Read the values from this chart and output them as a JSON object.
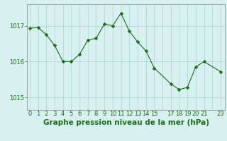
{
  "x": [
    0,
    1,
    2,
    3,
    4,
    5,
    6,
    7,
    8,
    9,
    10,
    11,
    12,
    13,
    14,
    15,
    17,
    18,
    19,
    20,
    21,
    23
  ],
  "y": [
    1016.93,
    1016.95,
    1016.75,
    1016.45,
    1016.0,
    1016.0,
    1016.2,
    1016.6,
    1016.65,
    1017.05,
    1017.0,
    1017.35,
    1016.85,
    1016.55,
    1016.3,
    1015.82,
    1015.38,
    1015.22,
    1015.28,
    1015.85,
    1016.0,
    1015.72
  ],
  "line_color": "#1a6e1a",
  "marker": "D",
  "marker_size": 2.5,
  "bg_color": "#d8f0f0",
  "grid_color": "#aad4d4",
  "title": "Graphe pression niveau de la mer (hPa)",
  "yticks": [
    1015,
    1016,
    1017
  ],
  "xtick_labels": [
    "0",
    "1",
    "2",
    "3",
    "4",
    "5",
    "6",
    "7",
    "8",
    "9",
    "1011121314",
    "15",
    "",
    "1718192021",
    "",
    "23"
  ],
  "xtick_positions": [
    0,
    1,
    2,
    3,
    4,
    5,
    6,
    7,
    8,
    9,
    10,
    15,
    16,
    17,
    20,
    23
  ],
  "xlim": [
    -0.3,
    23.5
  ],
  "ylim": [
    1014.65,
    1017.6
  ],
  "title_fontsize": 7.5,
  "tick_fontsize": 6,
  "title_color": "#1a6e1a",
  "tick_color": "#1a6e1a",
  "spine_color": "#888888"
}
